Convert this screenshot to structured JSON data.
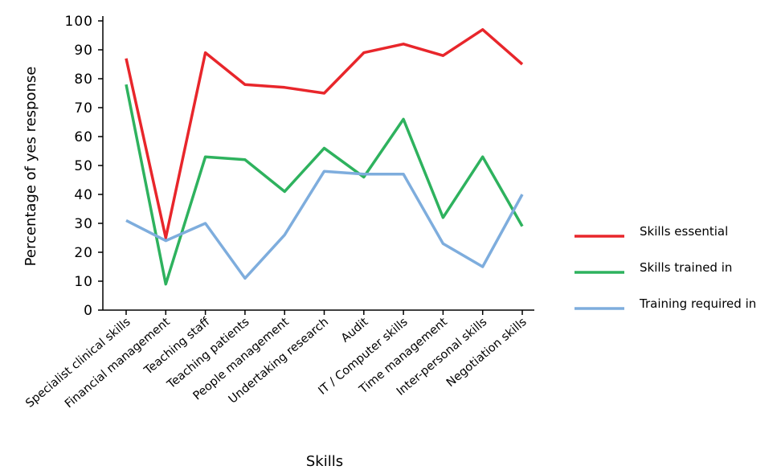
{
  "chart_data": {
    "type": "line",
    "title": "",
    "xlabel": "Skills",
    "ylabel": "Percentage of yes response",
    "ylim": [
      0,
      100
    ],
    "yticks": [
      0,
      10,
      20,
      30,
      40,
      50,
      60,
      70,
      80,
      90,
      100
    ],
    "grid": false,
    "legend_position": "right",
    "categories": [
      "Specialist clinical skills",
      "Financial management",
      "Teaching staff",
      "Teaching patients",
      "People management",
      "Undertaking research",
      "Audit",
      "IT / Computer skills",
      "Time management",
      "Inter-personal skills",
      "Negotiation skills"
    ],
    "series": [
      {
        "name": "Skills essential",
        "color": "#e8262b",
        "values": [
          87,
          25,
          89,
          78,
          77,
          75,
          89,
          92,
          88,
          97,
          85
        ]
      },
      {
        "name": "Skills trained in",
        "color": "#2eb25e",
        "values": [
          78,
          9,
          53,
          52,
          41,
          56,
          46,
          66,
          32,
          53,
          29
        ]
      },
      {
        "name": "Training required in",
        "color": "#7eaddd",
        "values": [
          31,
          24,
          30,
          11,
          26,
          48,
          47,
          47,
          23,
          15,
          40
        ]
      }
    ]
  }
}
